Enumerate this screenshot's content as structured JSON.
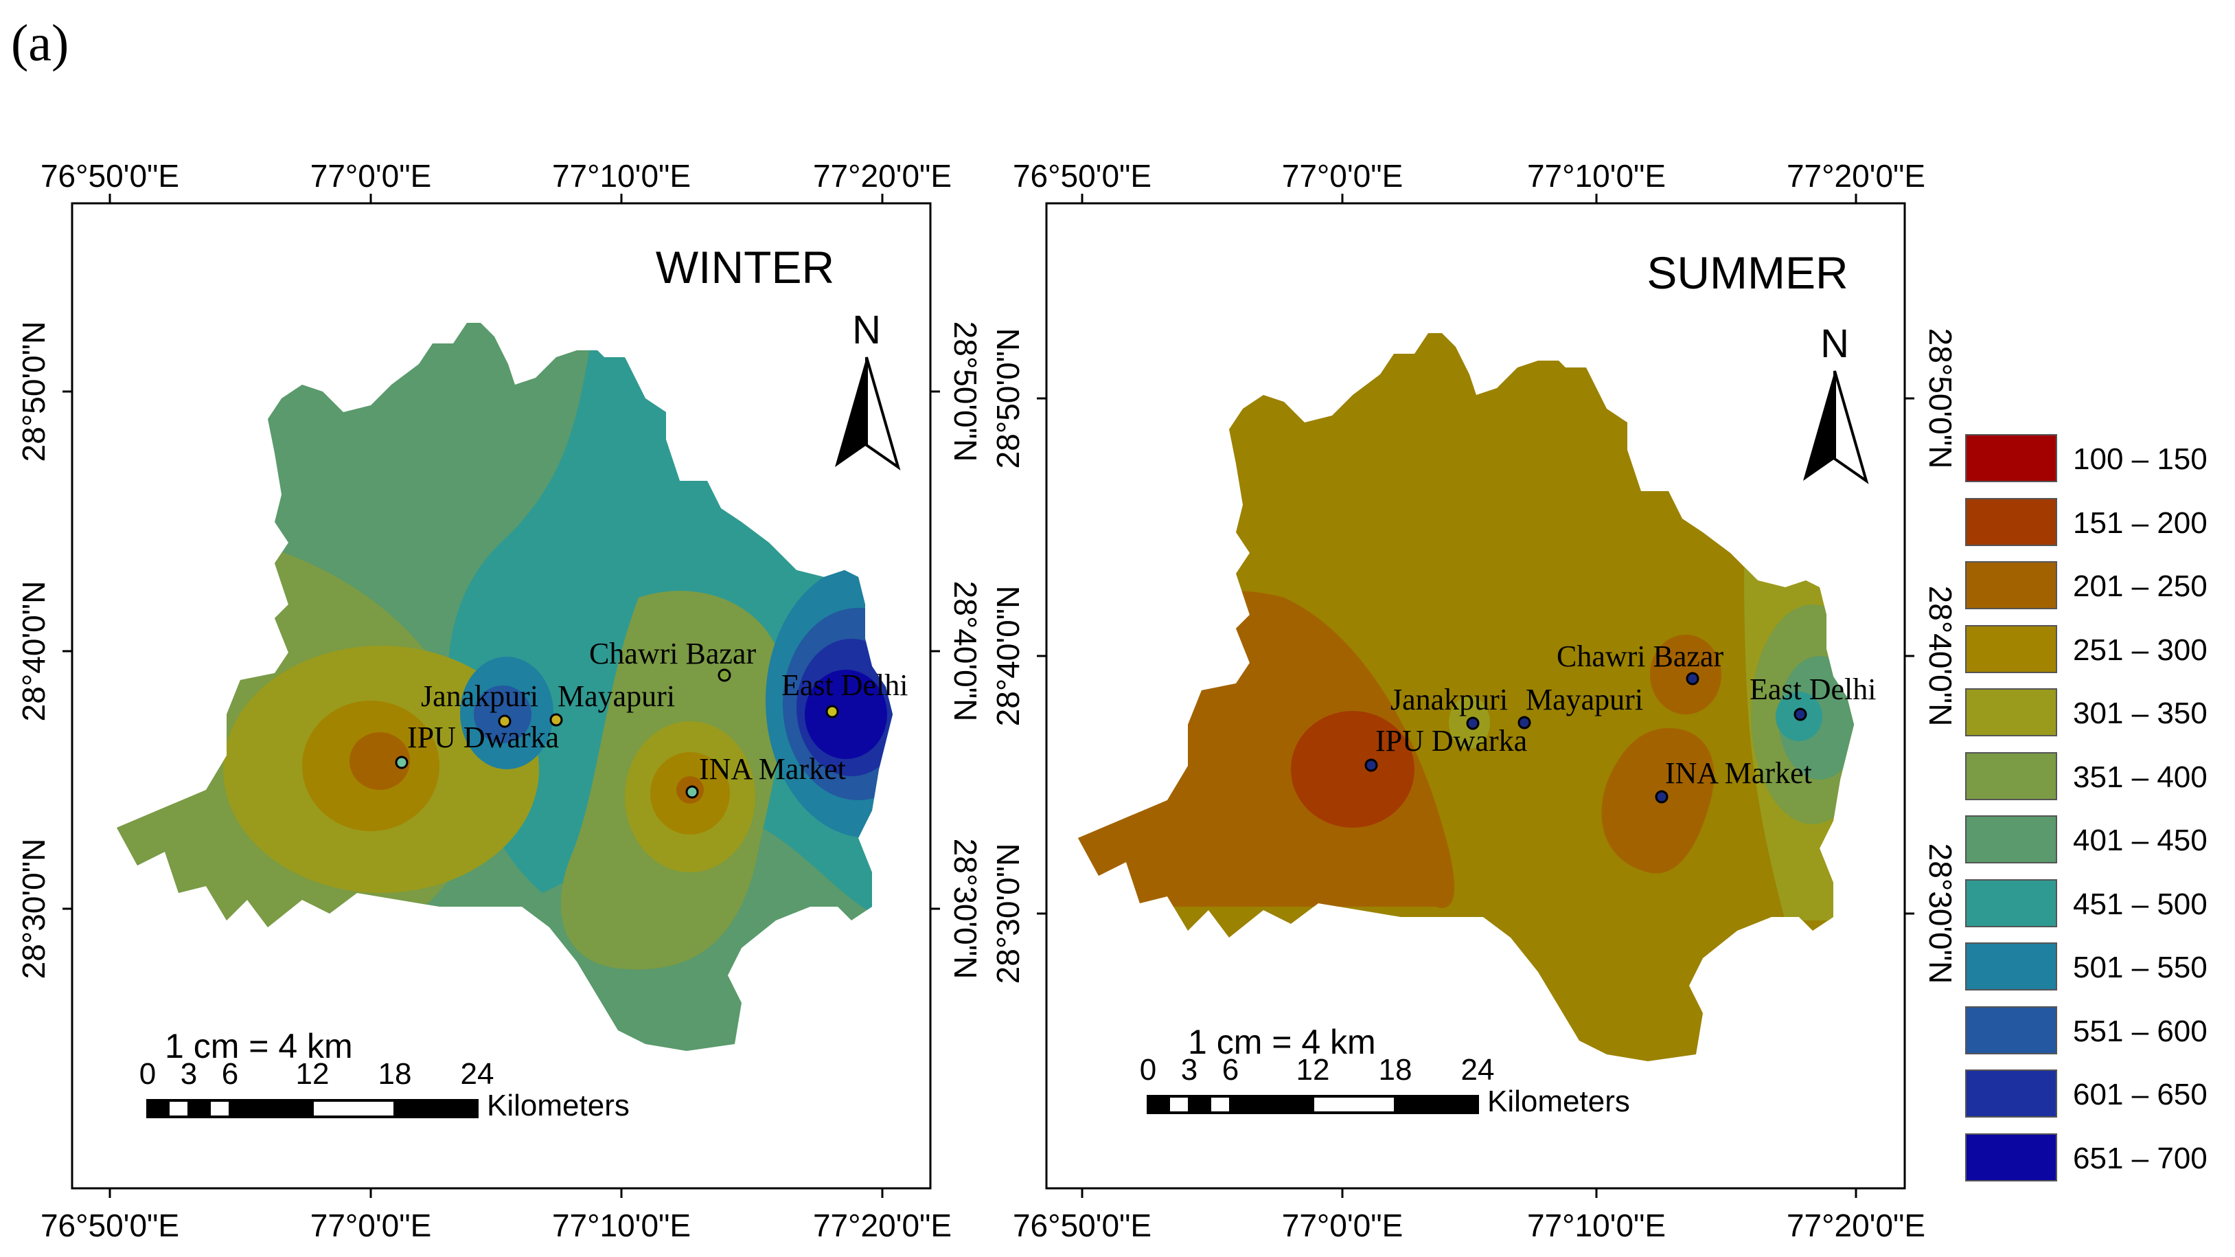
{
  "panel_label": "(a)",
  "maps": [
    {
      "id": "winter",
      "title": "WINTER",
      "north_label": "N",
      "scale_text": "1 cm = 4 km",
      "scale_ticks": [
        "0",
        "3",
        "6",
        "12",
        "18",
        "24"
      ],
      "scale_unit": "Kilometers",
      "lon_labels": [
        "76°50'0\"E",
        "77°0'0\"E",
        "77°10'0\"E",
        "77°20'0\"E"
      ],
      "lat_labels": [
        "28°50'0\"N",
        "28°40'0\"N",
        "28°30'0\"N"
      ],
      "base_color": "#5a9a6c",
      "stations": [
        {
          "name": "Chawri Bazar",
          "dot_color": "#7fa33a"
        },
        {
          "name": "Janakpuri",
          "dot_color": "#c8b020"
        },
        {
          "name": "Mayapuri",
          "dot_color": "#c8b020"
        },
        {
          "name": "East Delhi",
          "dot_color": "#c8c020"
        },
        {
          "name": "IPU Dwarka",
          "dot_color": "#6fc4a0"
        },
        {
          "name": "INA Market",
          "dot_color": "#6fc4a0"
        }
      ]
    },
    {
      "id": "summer",
      "title": "SUMMER",
      "north_label": "N",
      "scale_text": "1 cm = 4 km",
      "scale_ticks": [
        "0",
        "3",
        "6",
        "12",
        "18",
        "24"
      ],
      "scale_unit": "Kilometers",
      "lon_labels": [
        "76°50'0\"E",
        "77°0'0\"E",
        "77°10'0\"E",
        "77°20'0\"E"
      ],
      "lat_labels": [
        "28°50'0\"N",
        "28°40'0\"N",
        "28°30'0\"N"
      ],
      "base_color": "#9b8200",
      "stations": [
        {
          "name": "Chawri Bazar",
          "dot_color": "#1a2a80"
        },
        {
          "name": "Janakpuri",
          "dot_color": "#1a2a80"
        },
        {
          "name": "Mayapuri",
          "dot_color": "#1a2a80"
        },
        {
          "name": "East Delhi",
          "dot_color": "#1a2a80"
        },
        {
          "name": "IPU Dwarka",
          "dot_color": "#1a2a80"
        },
        {
          "name": "INA Market",
          "dot_color": "#1a2a80"
        }
      ]
    }
  ],
  "legend": [
    {
      "label": "100 – 150",
      "color": "#a30000"
    },
    {
      "label": "151 – 200",
      "color": "#a33a00"
    },
    {
      "label": "201 – 250",
      "color": "#a36200"
    },
    {
      "label": "251 – 300",
      "color": "#a38400"
    },
    {
      "label": "301 – 350",
      "color": "#9a9b1c"
    },
    {
      "label": "351 – 400",
      "color": "#7b9b45"
    },
    {
      "label": "401 – 450",
      "color": "#5a9a6c"
    },
    {
      "label": "451 – 500",
      "color": "#2f9a92"
    },
    {
      "label": "501 – 550",
      "color": "#1f80a0"
    },
    {
      "label": "551 – 600",
      "color": "#2458a0"
    },
    {
      "label": "601 – 650",
      "color": "#1c30a0"
    },
    {
      "label": "651 – 700",
      "color": "#0b06a2"
    }
  ]
}
